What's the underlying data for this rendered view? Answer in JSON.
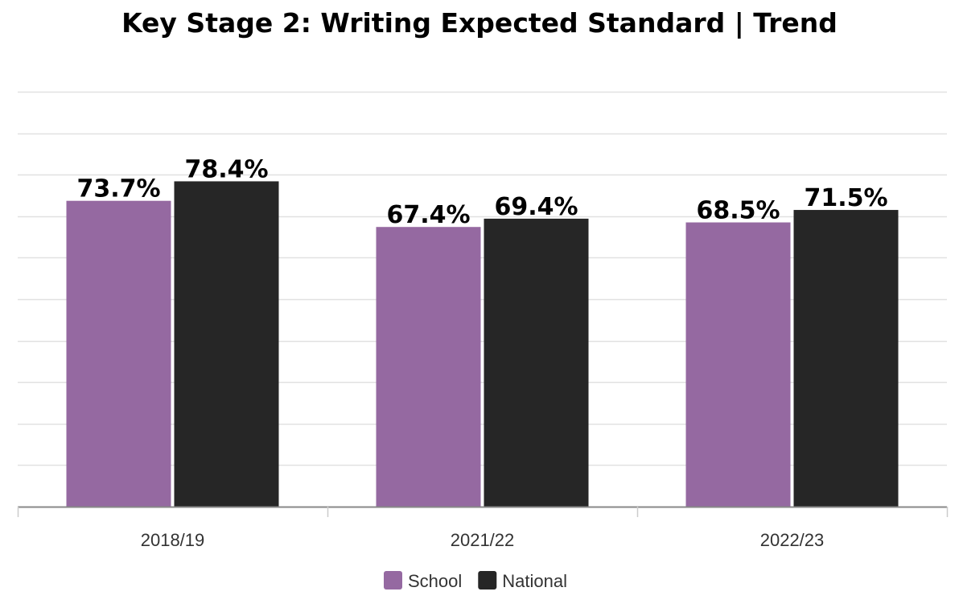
{
  "chart_data": {
    "type": "bar",
    "title": "Key Stage 2: Writing Expected Standard | Trend",
    "categories": [
      "2018/19",
      "2021/22",
      "2022/23"
    ],
    "series": [
      {
        "name": "School",
        "color": "#9569a1",
        "values": [
          73.7,
          67.4,
          68.5
        ],
        "labels": [
          "73.7%",
          "67.4%",
          "68.5%"
        ]
      },
      {
        "name": "National",
        "color": "#262626",
        "values": [
          78.4,
          69.4,
          71.5
        ],
        "labels": [
          "78.4%",
          "69.4%",
          "71.5%"
        ]
      }
    ],
    "ylim": [
      0,
      100
    ],
    "y_grid_step": 10,
    "grid": true,
    "y_tick_labels_shown": false,
    "legend_position": "bottom"
  }
}
